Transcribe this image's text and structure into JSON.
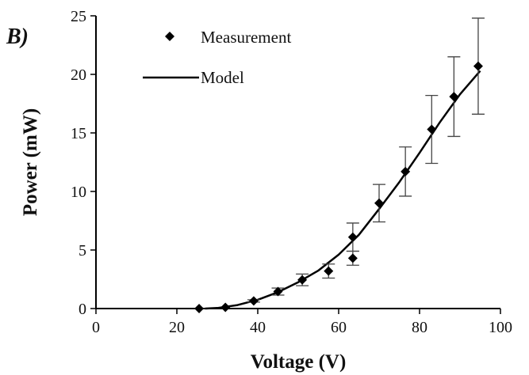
{
  "chart_data": {
    "type": "scatter",
    "panel_label": "B)",
    "xlabel": "Voltage (V)",
    "ylabel": "Power (mW)",
    "xlim": [
      0,
      100
    ],
    "ylim": [
      0,
      25
    ],
    "x_ticks": [
      0,
      20,
      40,
      60,
      80,
      100
    ],
    "y_ticks": [
      0,
      5,
      10,
      15,
      20,
      25
    ],
    "grid": false,
    "legend_position": "top-left",
    "colors": {
      "marker": "#000000",
      "line": "#000000",
      "axis": "#000000",
      "error_bar": "#444444"
    },
    "series": [
      {
        "name": "Measurement",
        "kind": "points",
        "marker": "diamond",
        "points": [
          {
            "x": 25.5,
            "y": 0.0,
            "err": 0.0
          },
          {
            "x": 32.0,
            "y": 0.1,
            "err": 0.0
          },
          {
            "x": 39.0,
            "y": 0.65,
            "err": 0.1
          },
          {
            "x": 45.0,
            "y": 1.45,
            "err": 0.3
          },
          {
            "x": 51.0,
            "y": 2.45,
            "err": 0.5
          },
          {
            "x": 57.5,
            "y": 3.2,
            "err": 0.6
          },
          {
            "x": 63.5,
            "y": 4.3,
            "err": 0.6
          },
          {
            "x": 63.5,
            "y": 6.1,
            "err": 1.2
          },
          {
            "x": 70.0,
            "y": 9.0,
            "err": 1.6
          },
          {
            "x": 76.5,
            "y": 11.7,
            "err": 2.1
          },
          {
            "x": 83.0,
            "y": 15.3,
            "err": 2.9
          },
          {
            "x": 88.5,
            "y": 18.1,
            "err": 3.4
          },
          {
            "x": 94.5,
            "y": 20.7,
            "err": 4.1
          }
        ]
      },
      {
        "name": "Model",
        "kind": "line",
        "points": [
          {
            "x": 27,
            "y": 0.0
          },
          {
            "x": 30,
            "y": 0.05
          },
          {
            "x": 35,
            "y": 0.3
          },
          {
            "x": 40,
            "y": 0.75
          },
          {
            "x": 45,
            "y": 1.4
          },
          {
            "x": 50,
            "y": 2.25
          },
          {
            "x": 55,
            "y": 3.25
          },
          {
            "x": 60,
            "y": 4.6
          },
          {
            "x": 65,
            "y": 6.3
          },
          {
            "x": 70,
            "y": 8.5
          },
          {
            "x": 75,
            "y": 10.8
          },
          {
            "x": 80,
            "y": 13.3
          },
          {
            "x": 85,
            "y": 15.9
          },
          {
            "x": 90,
            "y": 18.3
          },
          {
            "x": 95,
            "y": 20.3
          }
        ]
      }
    ]
  }
}
